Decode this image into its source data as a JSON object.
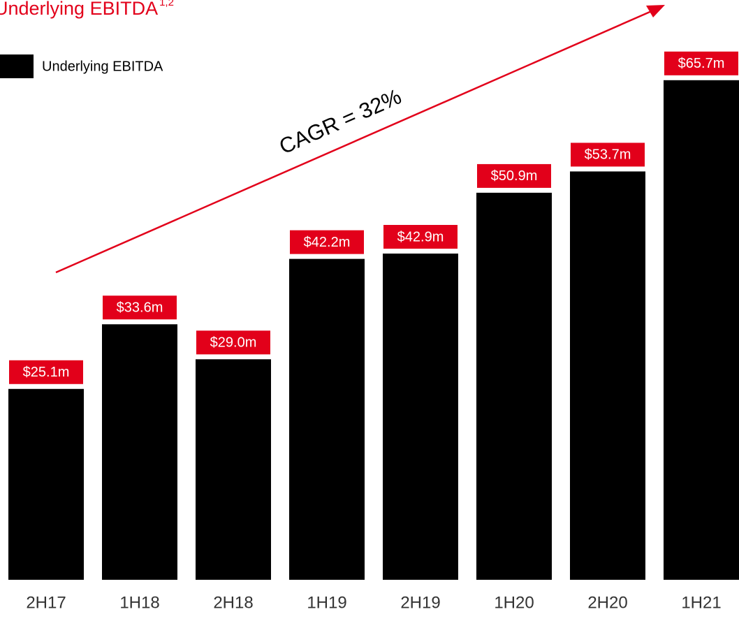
{
  "chart_data": {
    "type": "bar",
    "title": "Underlying EBITDA",
    "title_superscript": "1,2",
    "annotation": "CAGR = 32%",
    "categories": [
      "2H17",
      "1H18",
      "2H18",
      "1H19",
      "2H19",
      "1H20",
      "2H20",
      "1H21"
    ],
    "series": [
      {
        "name": "Underlying EBITDA",
        "color": "#000000",
        "values": [
          25.1,
          33.6,
          29.0,
          42.2,
          42.9,
          50.9,
          53.7,
          65.7
        ],
        "value_labels": [
          "$25.1m",
          "$33.6m",
          "$29.0m",
          "$42.2m",
          "$42.9m",
          "$50.9m",
          "$53.7m",
          "$65.7m"
        ]
      }
    ],
    "label_color": "#e2001a",
    "ylim": [
      0,
      70
    ]
  }
}
